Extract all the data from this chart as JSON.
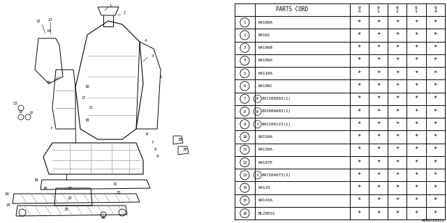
{
  "parts_cord_header": "PARTS CORD",
  "year_cols": [
    "9\n0",
    "9\n1",
    "9\n2",
    "9\n3",
    "9\n4"
  ],
  "rows": [
    {
      "num": 1,
      "code": "64160A"
    },
    {
      "num": 2,
      "code": "64161"
    },
    {
      "num": 3,
      "code": "64106B"
    },
    {
      "num": 4,
      "code": "64106A"
    },
    {
      "num": 5,
      "code": "64110A"
    },
    {
      "num": 6,
      "code": "64106C"
    },
    {
      "num": 7,
      "code": "W031206003(1)"
    },
    {
      "num": 8,
      "code": "W032006003(1)"
    },
    {
      "num": 9,
      "code": "S043106123(1)"
    },
    {
      "num": 10,
      "code": "64150A"
    },
    {
      "num": 11,
      "code": "64130A"
    },
    {
      "num": 12,
      "code": "64107E"
    },
    {
      "num": 13,
      "code": "S047204073(2)"
    },
    {
      "num": 14,
      "code": "64125"
    },
    {
      "num": 15,
      "code": "64143A"
    },
    {
      "num": 16,
      "code": "ML20031"
    }
  ],
  "special_codes": {
    "7": {
      "prefix_circle": "W",
      "rest": "031206003(1)"
    },
    "8": {
      "prefix_circle": "W",
      "rest": "032006003(1)"
    },
    "9": {
      "prefix_circle": "S",
      "rest": "043106123(1)"
    },
    "13": {
      "prefix_circle": "S",
      "rest": "047204073(2)"
    }
  },
  "catalog_code": "A640C00151",
  "bg_color": "#ffffff"
}
